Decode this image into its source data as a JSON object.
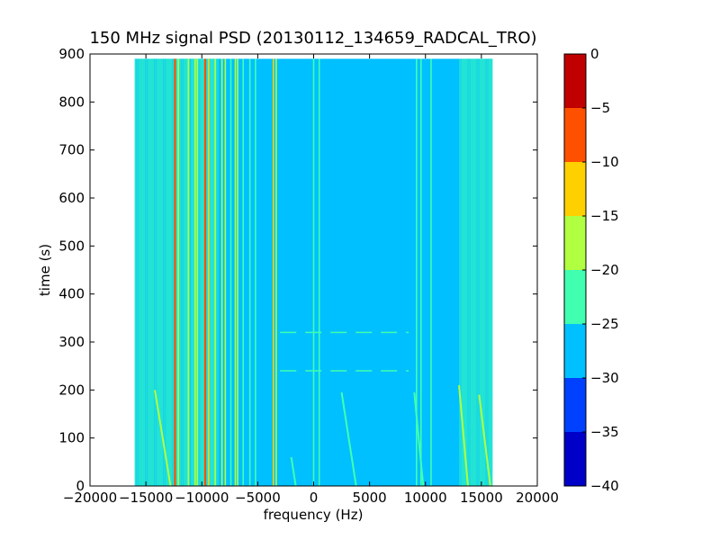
{
  "chart_data": {
    "type": "heatmap",
    "title": "150 MHz signal PSD (20130112_134659_RADCAL_TRO)",
    "xlabel": "frequency (Hz)",
    "ylabel": "time (s)",
    "xlim": [
      -20000,
      20000
    ],
    "ylim": [
      0,
      900
    ],
    "xticks": [
      -20000,
      -15000,
      -10000,
      -5000,
      0,
      5000,
      10000,
      15000,
      20000
    ],
    "xtick_labels": [
      "−20000",
      "−15000",
      "−10000",
      "−5000",
      "0",
      "5000",
      "10000",
      "15000",
      "20000"
    ],
    "yticks": [
      0,
      100,
      200,
      300,
      400,
      500,
      600,
      700,
      800,
      900
    ],
    "ytick_labels": [
      "0",
      "100",
      "200",
      "300",
      "400",
      "500",
      "600",
      "700",
      "800",
      "900"
    ],
    "data_extent": {
      "x": [
        -16000,
        16000
      ],
      "y": [
        0,
        890
      ]
    },
    "background_level": -27.5,
    "colorbar": {
      "levels": [
        -40,
        -35,
        -30,
        -25,
        -20,
        -15,
        -10,
        -5,
        0
      ],
      "tick_labels": [
        "−40",
        "−35",
        "−30",
        "−25",
        "−20",
        "−15",
        "−10",
        "−5",
        "0"
      ],
      "colors": [
        "#0000c8",
        "#0040ff",
        "#00c0ff",
        "#40ffb0",
        "#b0ff40",
        "#ffd000",
        "#ff5000",
        "#c00000"
      ]
    },
    "noise_bands": [
      {
        "x": [
          -16000,
          -11000
        ],
        "level": -22.5
      },
      {
        "x": [
          -11000,
          -8500
        ],
        "level": -22.5
      },
      {
        "x": [
          13000,
          16000
        ],
        "level": -22.5
      }
    ],
    "vertical_lines": [
      {
        "x": -12400,
        "level": -7.5
      },
      {
        "x": -12100,
        "level": -17.5
      },
      {
        "x": -11200,
        "level": -17.5
      },
      {
        "x": -10600,
        "level": -17.5
      },
      {
        "x": -10400,
        "level": -17.5
      },
      {
        "x": -9700,
        "level": -7.5
      },
      {
        "x": -9400,
        "level": -12.5
      },
      {
        "x": -8800,
        "level": -17.5
      },
      {
        "x": -8200,
        "level": -17.5
      },
      {
        "x": -7900,
        "level": -17.5
      },
      {
        "x": -7400,
        "level": -22.5
      },
      {
        "x": -7000,
        "level": -17.5
      },
      {
        "x": -6800,
        "level": -17.5
      },
      {
        "x": -6300,
        "level": -22.5
      },
      {
        "x": -5700,
        "level": -22.5
      },
      {
        "x": -5200,
        "level": -22.5
      },
      {
        "x": -3600,
        "level": -12.5
      },
      {
        "x": -3350,
        "level": -17.5
      },
      {
        "x": 0,
        "level": -22.5
      },
      {
        "x": 500,
        "level": -22.5
      },
      {
        "x": 9200,
        "level": -22.5
      },
      {
        "x": 9600,
        "level": -22.5
      },
      {
        "x": 10500,
        "level": -22.5
      }
    ],
    "drifting_traces": [
      {
        "x_start": -14200,
        "x_end": -12800,
        "y_start": 200,
        "y_end": 0,
        "level": -17.5
      },
      {
        "x_start": 2500,
        "x_end": 3800,
        "y_start": 195,
        "y_end": 0,
        "level": -22.5
      },
      {
        "x_start": 9000,
        "x_end": 9800,
        "y_start": 195,
        "y_end": 0,
        "level": -22.5
      },
      {
        "x_start": 13000,
        "x_end": 13800,
        "y_start": 210,
        "y_end": 0,
        "level": -17.5
      },
      {
        "x_start": 14800,
        "x_end": 15800,
        "y_start": 190,
        "y_end": 0,
        "level": -17.5
      },
      {
        "x_start": -2000,
        "x_end": -1600,
        "y_start": 60,
        "y_end": 0,
        "level": -22.5
      }
    ],
    "horizontal_glitches": [
      {
        "y": 320,
        "x": [
          -3000,
          8500
        ],
        "level": -22.5
      },
      {
        "y": 240,
        "x": [
          -3000,
          8500
        ],
        "level": -22.5
      }
    ]
  }
}
